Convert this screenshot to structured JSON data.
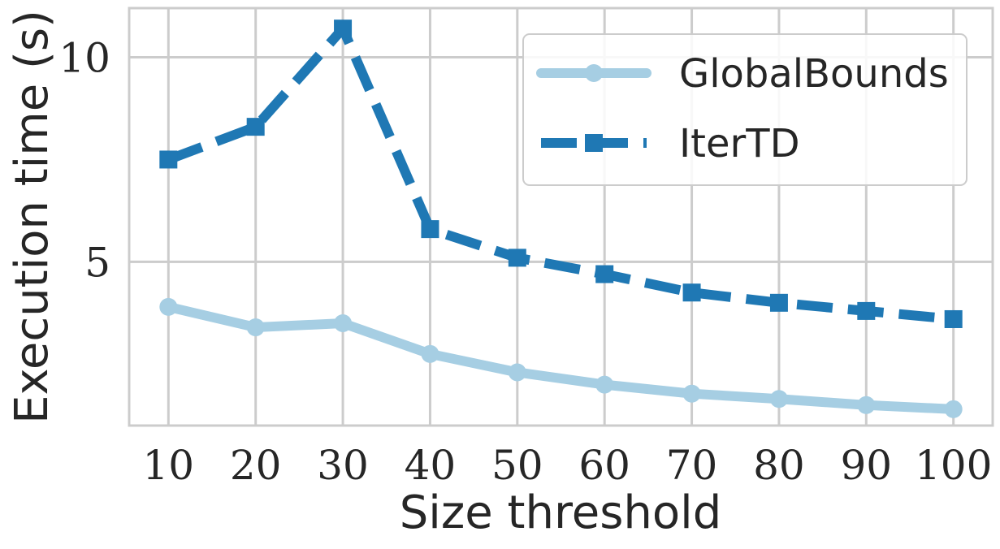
{
  "chart_data": {
    "type": "line",
    "x": [
      10,
      20,
      30,
      40,
      50,
      60,
      70,
      80,
      90,
      100
    ],
    "x_tick_labels": [
      "10",
      "20",
      "30",
      "40",
      "50",
      "60",
      "70",
      "80",
      "90",
      "100"
    ],
    "y_ticks": [
      5,
      10
    ],
    "y_tick_labels": [
      "5",
      "10"
    ],
    "xlabel": "Size threshold",
    "ylabel": "Execution time (s)",
    "xlim": [
      5.5,
      104.5
    ],
    "ylim": [
      1.0,
      11.2
    ],
    "grid": true,
    "legend_position": "top-right",
    "series": [
      {
        "name": "GlobalBounds",
        "color": "#a6cee3",
        "line_style": "solid",
        "marker": "circle",
        "values": [
          3.9,
          3.4,
          3.5,
          2.75,
          2.3,
          2.0,
          1.78,
          1.65,
          1.5,
          1.4
        ]
      },
      {
        "name": "IterTD",
        "color": "#1f78b4",
        "line_style": "dashed",
        "marker": "square",
        "values": [
          7.5,
          8.3,
          10.7,
          5.8,
          5.1,
          4.7,
          4.25,
          4.0,
          3.8,
          3.6
        ]
      }
    ]
  }
}
